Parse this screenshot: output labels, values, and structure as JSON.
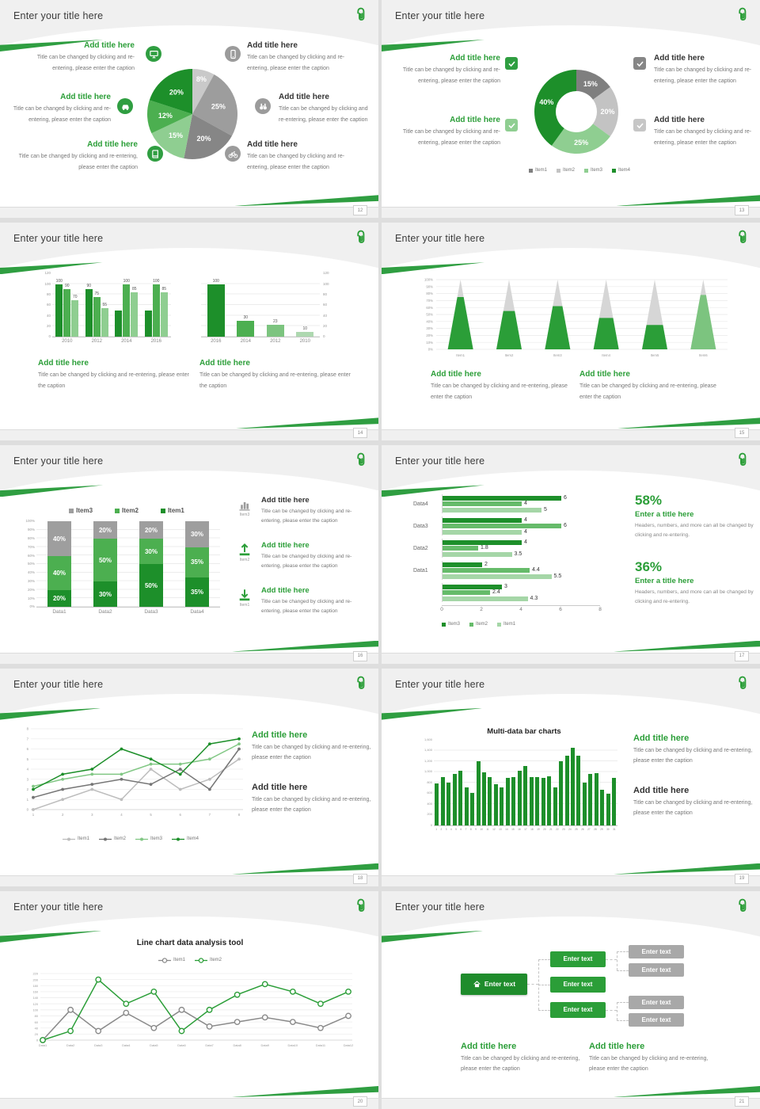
{
  "colors": {
    "accent": "#2f9e41",
    "green_dark": "#1d8f2a",
    "green_mid": "#4caf50",
    "green_light": "#8fce91",
    "gray_dark": "#7f7f7f",
    "gray_mid": "#9d9d9d",
    "gray_light": "#c9c9c9"
  },
  "common": {
    "slide_title": "Enter your title here",
    "add_title": "Add title here",
    "caption": "Title can be changed by clicking and re-entering, please enter the caption",
    "logo_icon": "paperclip-icon"
  },
  "slides": {
    "s12": {
      "page": "12",
      "left_icons": [
        "monitor-icon",
        "car-icon",
        "book-icon"
      ],
      "right_icons": [
        "phone-icon",
        "binoculars-icon",
        "bicycle-icon"
      ],
      "chart_data": {
        "type": "pie",
        "slices": [
          {
            "label": "8%",
            "value": 8,
            "color": "#c9c9c9"
          },
          {
            "label": "25%",
            "value": 25,
            "color": "#9d9d9d"
          },
          {
            "label": "20%",
            "value": 20,
            "color": "#868686"
          },
          {
            "label": "15%",
            "value": 15,
            "color": "#8fce91"
          },
          {
            "label": "12%",
            "value": 12,
            "color": "#4caf50"
          },
          {
            "label": "20%",
            "value": 20,
            "color": "#1d8f2a"
          }
        ]
      }
    },
    "s13": {
      "page": "13",
      "check_colors": [
        "#2f9e41",
        "#8fce91",
        "#868686",
        "#c6c6c6"
      ],
      "chart_data": {
        "type": "pie",
        "donut": true,
        "slices": [
          {
            "label": "15%",
            "value": 15,
            "color": "#7f7f7f"
          },
          {
            "label": "20%",
            "value": 20,
            "color": "#c3c3c3"
          },
          {
            "label": "25%",
            "value": 25,
            "color": "#8fce91"
          },
          {
            "label": "40%",
            "value": 40,
            "color": "#1d8f2a"
          }
        ],
        "legend": [
          {
            "label": "Item1",
            "color": "#7f7f7f"
          },
          {
            "label": "Item2",
            "color": "#c3c3c3"
          },
          {
            "label": "Item3",
            "color": "#8fce91"
          },
          {
            "label": "Item4",
            "color": "#1d8f2a"
          }
        ]
      }
    },
    "s14": {
      "page": "14",
      "chart_data": [
        {
          "type": "bar",
          "categories": [
            "2010",
            "2012",
            "2014",
            "2016"
          ],
          "series_colors": [
            "#1d8f2a",
            "#4caf50",
            "#8fce91"
          ],
          "values": [
            [
              100,
              90,
              70
            ],
            [
              90,
              75,
              55
            ],
            [
              50,
              100,
              85
            ],
            [
              50,
              100,
              85
            ]
          ],
          "bar_labels": [
            [
              "100",
              "90",
              "70"
            ],
            [
              "90",
              "75",
              "55"
            ],
            [
              "",
              "100",
              "85"
            ],
            [
              "",
              "100",
              "85"
            ]
          ],
          "yticks": [
            "0",
            "20",
            "40",
            "60",
            "80",
            "100",
            "120"
          ],
          "ymax": 120
        },
        {
          "type": "bar",
          "categories": [
            "2016",
            "2014",
            "2012",
            "2010"
          ],
          "colors": [
            "#1d8f2a",
            "#4caf50",
            "#7cc47f",
            "#aed8b0"
          ],
          "values": [
            100,
            30,
            23,
            10
          ],
          "bar_labels": [
            "100",
            "30",
            "23",
            "10"
          ],
          "yticks": [
            "0",
            "20",
            "40",
            "60",
            "80",
            "100",
            "120"
          ],
          "ymax": 120
        }
      ]
    },
    "s15": {
      "page": "15",
      "chart_data": {
        "type": "pyramid-bar",
        "categories": [
          "Item1",
          "Item2",
          "Item3",
          "Item4",
          "Item5",
          "Item6"
        ],
        "values_pct": [
          75,
          55,
          62,
          45,
          35,
          78
        ],
        "fill_colors": [
          "#2b9e38",
          "#2b9e38",
          "#2b9e38",
          "#2b9e38",
          "#2b9e38",
          "#7cc47f"
        ],
        "top_color": "#d6d6d6",
        "yticks": [
          "0%",
          "10%",
          "20%",
          "30%",
          "40%",
          "50%",
          "60%",
          "70%",
          "80%",
          "90%",
          "100%"
        ]
      }
    },
    "s16": {
      "page": "16",
      "chart_data": {
        "type": "stacked-bar",
        "categories": [
          "Data1",
          "Data2",
          "Data3",
          "Data4"
        ],
        "series": [
          {
            "name": "Item1",
            "color": "#1d8f2a",
            "values": [
              20,
              30,
              50,
              35
            ]
          },
          {
            "name": "Item2",
            "color": "#4caf50",
            "values": [
              40,
              50,
              30,
              35
            ]
          },
          {
            "name": "Item3",
            "color": "#9e9e9e",
            "values": [
              40,
              20,
              20,
              30
            ]
          }
        ],
        "legend": [
          {
            "label": "Item3",
            "color": "#9e9e9e"
          },
          {
            "label": "Item2",
            "color": "#4caf50"
          },
          {
            "label": "Item1",
            "color": "#1d8f2a"
          }
        ],
        "yticks": [
          "0%",
          "10%",
          "20%",
          "30%",
          "40%",
          "50%",
          "60%",
          "70%",
          "80%",
          "90%",
          "100%"
        ]
      },
      "blocks": [
        {
          "icon": "bar-chart-icon",
          "item": "Item3",
          "green": false
        },
        {
          "icon": "upload-icon",
          "item": "Item2",
          "green": true
        },
        {
          "icon": "download-icon",
          "item": "Item1",
          "green": true
        }
      ]
    },
    "s17": {
      "page": "17",
      "chart_data": {
        "type": "hbar",
        "groups": [
          {
            "label": "Data4",
            "values": [
              6,
              4,
              5
            ]
          },
          {
            "label": "Data3",
            "values": [
              4,
              6,
              4
            ]
          },
          {
            "label": "Data2",
            "values": [
              4,
              1.8,
              3.5
            ]
          },
          {
            "label": "Data1",
            "values": [
              2,
              4.4,
              5.5
            ]
          },
          {
            "label": "",
            "values": [
              3,
              2.4,
              4.3
            ]
          }
        ],
        "series_colors": [
          "#1d8f2a",
          "#66bb6a",
          "#a5d6a7"
        ],
        "xticks": [
          "0",
          "2",
          "4",
          "6",
          "8"
        ],
        "xmax": 8,
        "legend": [
          {
            "label": "Item3",
            "color": "#1d8f2a"
          },
          {
            "label": "Item2",
            "color": "#66bb6a"
          },
          {
            "label": "Item1",
            "color": "#a5d6a7"
          }
        ]
      },
      "stats": [
        {
          "pct": "58%",
          "title": "Enter a title here",
          "text": "Headers, numbers, and more can all be changed by clicking and re-entering."
        },
        {
          "pct": "36%",
          "title": "Enter a title here",
          "text": "Headers, numbers, and more can all be changed by clicking and re-entering."
        }
      ]
    },
    "s18": {
      "page": "18",
      "chart_data": {
        "type": "line",
        "x": [
          "1",
          "2",
          "3",
          "4",
          "5",
          "6",
          "7",
          "8"
        ],
        "series": [
          {
            "name": "Item1",
            "color": "#bdbdbd",
            "values": [
              0,
              1,
              2,
              1,
              4,
              2,
              3,
              5
            ]
          },
          {
            "name": "Item2",
            "color": "#757575",
            "values": [
              1.2,
              2,
              2.5,
              3,
              2.5,
              4,
              2,
              6
            ]
          },
          {
            "name": "Item3",
            "color": "#81c784",
            "values": [
              2.3,
              3,
              3.5,
              3.5,
              4.5,
              4.5,
              5,
              6.5
            ]
          },
          {
            "name": "Item4",
            "color": "#1d8f2a",
            "values": [
              2,
              3.5,
              4,
              6,
              5,
              3.5,
              6.5,
              7
            ]
          }
        ],
        "ylim": [
          0,
          8
        ]
      }
    },
    "s19": {
      "page": "19",
      "chart_data": {
        "type": "bar",
        "title": "Multi-data bar charts",
        "color": "#1d8f2a",
        "values": [
          780,
          900,
          800,
          950,
          1020,
          700,
          600,
          1200,
          990,
          900,
          770,
          700,
          890,
          900,
          1010,
          1100,
          900,
          900,
          880,
          910,
          700,
          1200,
          1300,
          1450,
          1300,
          800,
          960,
          970,
          660,
          580,
          880
        ],
        "yticks": [
          "0",
          "200",
          "400",
          "600",
          "800",
          "1,000",
          "1,200",
          "1,400",
          "1,600"
        ],
        "ymax": 1600
      }
    },
    "s20": {
      "page": "20",
      "chart_data": {
        "type": "line",
        "title": "Line chart data analysis tool",
        "x_labels": [
          "Data1",
          "Data2",
          "Data3",
          "Data4",
          "Data5",
          "Data6",
          "Data7",
          "Data8",
          "Data9",
          "Data10",
          "Data11",
          "Data12"
        ],
        "series": [
          {
            "name": "Item1",
            "color": "#8a8a8a",
            "values": [
              0,
              100,
              30,
              90,
              40,
              100,
              45,
              60,
              75,
              60,
              40,
              80
            ]
          },
          {
            "name": "Item2",
            "color": "#2b9e38",
            "values": [
              0,
              30,
              200,
              120,
              160,
              30,
              100,
              150,
              185,
              160,
              120,
              160
            ]
          }
        ],
        "ylim": [
          0,
          220
        ],
        "ytick_step": 20
      }
    },
    "s21": {
      "page": "21",
      "org": {
        "root": "Enter text",
        "root_icon": "home-icon",
        "mid": [
          "Enter text",
          "Enter text",
          "Enter text"
        ],
        "leaf": [
          "Enter text",
          "Enter text",
          "Enter text",
          "Enter text"
        ],
        "green": "#2b9e38",
        "gray": "#a8a8a8"
      }
    }
  }
}
